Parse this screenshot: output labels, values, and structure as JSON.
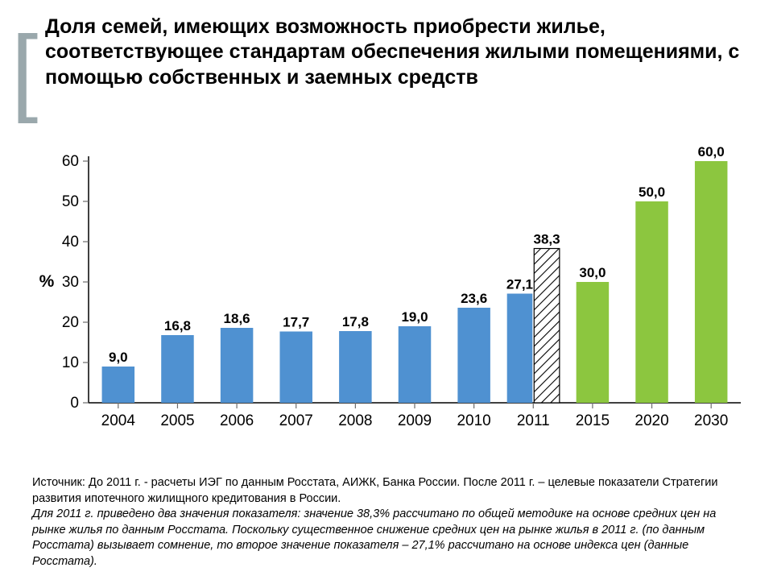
{
  "title": "Доля семей, имеющих возможность приобрести жилье, соответствующее стандартам обеспечения жилыми помещениями, с помощью собственных и заемных средств",
  "source_line1": "Источник: До 2011 г. - расчеты ИЭГ по данным Росстата, АИЖК, Банка России. После 2011 г. – целевые показатели Стратегии развития ипотечного жилищного кредитования в России.",
  "source_line2_italic": "Для 2011 г. приведено два значения показателя: значение 38,3% рассчитано по общей методике на основе средних цен на рынке жилья по данным Росстата. Поскольку существенное снижение средних цен на рынке жилья в 2011 г. (по данным Росстата) вызывает сомнение, то второе значение показателя – 27,1% рассчитано на основе индекса цен (данные Росстата).",
  "chart": {
    "type": "bar",
    "ylabel": "%",
    "ylim": [
      0,
      60
    ],
    "ytick_step": 10,
    "title_fontsize": 25,
    "tick_fontsize": 19,
    "label_fontsize": 18,
    "datalabel_fontsize": 17,
    "axis_color": "#000000",
    "tick_color": "#6b6b6b",
    "background_color": "#ffffff",
    "bar_width_ratio": 0.55,
    "colors": {
      "blue": "#4f91d1",
      "green": "#8cc63f",
      "hatched_stroke": "#000000",
      "hatched_fill": "#ffffff"
    },
    "categories": [
      "2004",
      "2005",
      "2006",
      "2007",
      "2008",
      "2009",
      "2010",
      "2011",
      "2015",
      "2020",
      "2030"
    ],
    "bars": [
      {
        "cat": "2004",
        "value": 9.0,
        "label": "9,0",
        "style": "blue",
        "slot": "single"
      },
      {
        "cat": "2005",
        "value": 16.8,
        "label": "16,8",
        "style": "blue",
        "slot": "single"
      },
      {
        "cat": "2006",
        "value": 18.6,
        "label": "18,6",
        "style": "blue",
        "slot": "single"
      },
      {
        "cat": "2007",
        "value": 17.7,
        "label": "17,7",
        "style": "blue",
        "slot": "single"
      },
      {
        "cat": "2008",
        "value": 17.8,
        "label": "17,8",
        "style": "blue",
        "slot": "single"
      },
      {
        "cat": "2009",
        "value": 19.0,
        "label": "19,0",
        "style": "blue",
        "slot": "single"
      },
      {
        "cat": "2010",
        "value": 23.6,
        "label": "23,6",
        "style": "blue",
        "slot": "single"
      },
      {
        "cat": "2011",
        "value": 27.1,
        "label": "27,1",
        "style": "blue",
        "slot": "left"
      },
      {
        "cat": "2011",
        "value": 38.3,
        "label": "38,3",
        "style": "hatched",
        "slot": "right"
      },
      {
        "cat": "2015",
        "value": 30.0,
        "label": "30,0",
        "style": "green",
        "slot": "single"
      },
      {
        "cat": "2020",
        "value": 50.0,
        "label": "50,0",
        "style": "green",
        "slot": "single"
      },
      {
        "cat": "2030",
        "value": 60.0,
        "label": "60,0",
        "style": "green",
        "slot": "single"
      }
    ]
  }
}
